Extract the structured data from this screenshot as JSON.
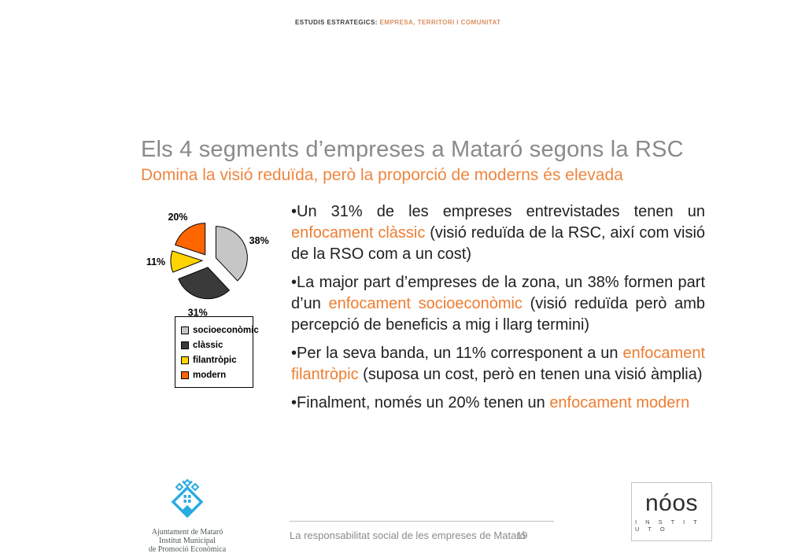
{
  "header": {
    "brand_black": "ESTUDIS ESTRATEGICS:",
    "brand_orange": "EMPRESA, TERRITORI I COMUNITAT"
  },
  "title": "Els 4 segments d’empreses a Mataró segons la RSC",
  "subtitle": "Domina la visió reduïda, però la proporció de moderns és elevada",
  "colors": {
    "accent_orange": "#ED7D31",
    "title_gray": "#8A8A8A",
    "logo_cyan": "#29ABE2"
  },
  "chart_data": {
    "type": "pie",
    "title": "",
    "categories": [
      "socioeconòmic",
      "clàssic",
      "filantròpic",
      "modern"
    ],
    "values": [
      38,
      31,
      11,
      20
    ],
    "labels": [
      "38%",
      "31%",
      "11%",
      "20%"
    ],
    "colors": [
      "#C6C6C6",
      "#3A3A3A",
      "#FFD400",
      "#FF6600"
    ],
    "start_angle_deg": 0,
    "clockwise": true,
    "exploded": true,
    "legend_position": "below"
  },
  "bullets": [
    {
      "segments": [
        {
          "text": "•Un 31% de les empreses entrevistades tenen un ",
          "h": false
        },
        {
          "text": "enfocament clàssic",
          "h": true
        },
        {
          "text": " (visió reduïda de la RSC, així com visió de la RSO com a un cost)",
          "h": false
        }
      ]
    },
    {
      "segments": [
        {
          "text": "•La major part d’empreses de la zona, un 38% formen part d’un ",
          "h": false
        },
        {
          "text": "enfocament socioeconòmic",
          "h": true
        },
        {
          "text": " (visió reduïda però amb percepció de beneficis a mig i llarg termini)",
          "h": false
        }
      ]
    },
    {
      "segments": [
        {
          "text": "•Per la seva banda, un 11% corresponent a un ",
          "h": false
        },
        {
          "text": "enfocament filantròpic",
          "h": true
        },
        {
          "text": " (suposa un cost, però en tenen una visió àmplia)",
          "h": false
        }
      ]
    },
    {
      "segments": [
        {
          "text": "•Finalment, només un 20% tenen un ",
          "h": false
        },
        {
          "text": "enfocament modern",
          "h": true
        }
      ]
    }
  ],
  "footer": {
    "caption": "La responsabilitat social de les empreses de Mataró",
    "page_number": "19"
  },
  "logos": {
    "ajuntament": {
      "lines": [
        "Ajuntament de Mataró",
        "Institut Municipal",
        "de Promoció Econòmica"
      ]
    },
    "noos": {
      "name": "nóos",
      "subname": "I N S T I T U T O"
    }
  }
}
